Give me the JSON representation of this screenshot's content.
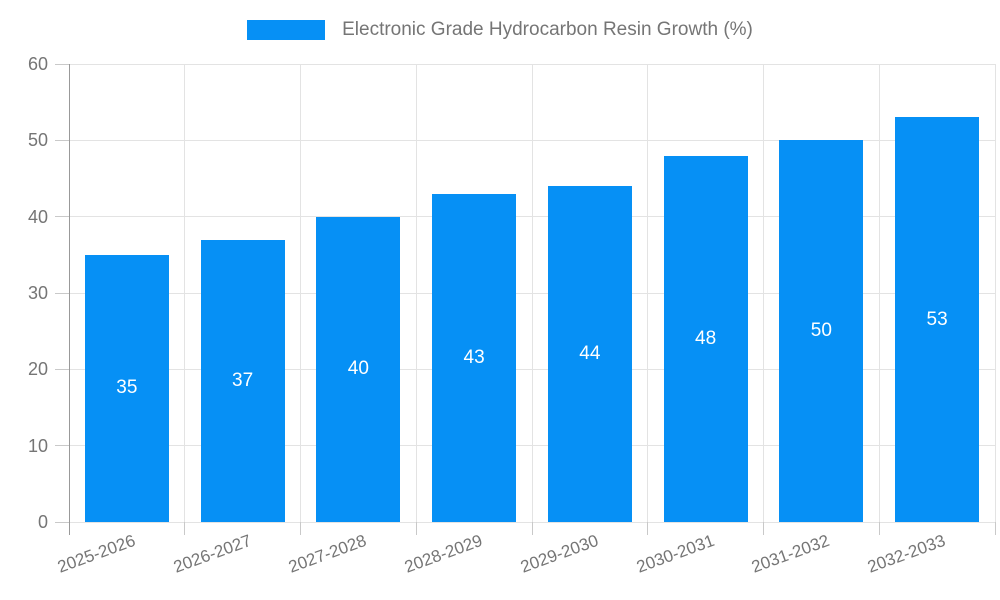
{
  "chart_data": {
    "type": "bar",
    "title": "",
    "legend_label": "Electronic Grade Hydrocarbon Resin Growth (%)",
    "legend_position": "top",
    "categories": [
      "2025-2026",
      "2026-2027",
      "2027-2028",
      "2028-2029",
      "2029-2030",
      "2030-2031",
      "2031-2032",
      "2032-2033"
    ],
    "series": [
      {
        "name": "Electronic Grade Hydrocarbon Resin Growth (%)",
        "values": [
          35,
          37,
          40,
          43,
          44,
          48,
          50,
          53
        ]
      }
    ],
    "xlabel": "",
    "ylabel": "",
    "ylim": [
      0,
      60
    ],
    "yticks": [
      0,
      10,
      20,
      30,
      40,
      50,
      60
    ],
    "grid": true,
    "bar_value_labels": [
      35,
      37,
      40,
      43,
      44,
      48,
      50,
      53
    ],
    "colors": {
      "bar": "#0690f5",
      "bar_label": "#ffffff",
      "axis_label": "#757575",
      "legend_text": "#757575",
      "grid_line": "#e3e3e3",
      "axis_line": "#999999",
      "tick": "#c9c9c9",
      "background": "#ffffff"
    }
  }
}
